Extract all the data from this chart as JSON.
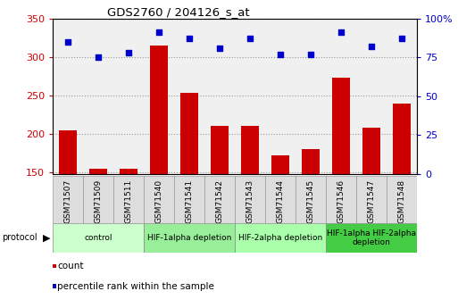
{
  "title": "GDS2760 / 204126_s_at",
  "samples": [
    "GSM71507",
    "GSM71509",
    "GSM71511",
    "GSM71540",
    "GSM71541",
    "GSM71542",
    "GSM71543",
    "GSM71544",
    "GSM71545",
    "GSM71546",
    "GSM71547",
    "GSM71548"
  ],
  "counts": [
    205,
    155,
    155,
    315,
    253,
    210,
    210,
    172,
    180,
    273,
    208,
    240
  ],
  "percentile_ranks": [
    85,
    75,
    78,
    91,
    87,
    81,
    87,
    77,
    77,
    91,
    82,
    87
  ],
  "ylim_left": [
    148,
    350
  ],
  "ylim_right": [
    0,
    100
  ],
  "yticks_left": [
    150,
    200,
    250,
    300,
    350
  ],
  "yticks_right": [
    0,
    25,
    50,
    75,
    100
  ],
  "bar_color": "#cc0000",
  "dot_color": "#0000cc",
  "dot_size": 20,
  "protocol_groups": [
    {
      "label": "control",
      "start": 0,
      "end": 3,
      "color": "#ccffcc"
    },
    {
      "label": "HIF-1alpha depletion",
      "start": 3,
      "end": 6,
      "color": "#99ee99"
    },
    {
      "label": "HIF-2alpha depletion",
      "start": 6,
      "end": 9,
      "color": "#aaffaa"
    },
    {
      "label": "HIF-1alpha HIF-2alpha\ndepletion",
      "start": 9,
      "end": 12,
      "color": "#44cc44"
    }
  ],
  "legend_items": [
    {
      "label": "count",
      "color": "#cc0000"
    },
    {
      "label": "percentile rank within the sample",
      "color": "#0000cc"
    }
  ],
  "grid_color": "#999999",
  "tick_label_color_left": "#cc0000",
  "tick_label_color_right": "#0000cc",
  "bg_color": "#f0f0f0",
  "spine_color": "#aaaaaa"
}
